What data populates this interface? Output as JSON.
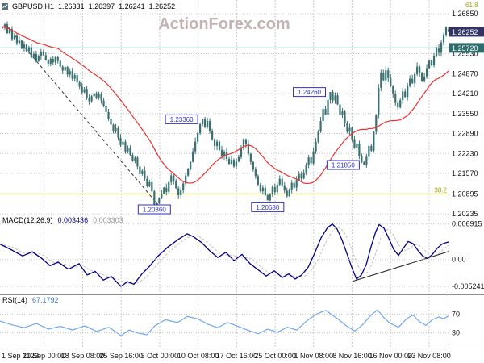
{
  "header": {
    "symbol_period": "GBPUSD,H1",
    "open": "1.26331",
    "high": "1.26397",
    "low": "1.26241",
    "close": "1.26252"
  },
  "watermark": "ActionForex.com",
  "colors": {
    "candle": "#3a7070",
    "ma": "#f03030",
    "grid": "#cccccc",
    "annotation": "#3030c0",
    "fib": "#a6a600",
    "level": "#2e6b6b",
    "tag_current_bg": "#343464",
    "tag_level_bg": "#2e6b6b",
    "macd_main": "#000080",
    "macd_signal": "#c0c0c0",
    "rsi": "#6fa8f0",
    "trendline": "#333333",
    "panel_border": "#909090"
  },
  "chart_data": {
    "type": "candlestick",
    "title": "GBPUSD H1",
    "ylim": [
      1.202,
      1.269
    ],
    "x_axis_labels": [
      "1 Sep 2023",
      "11 Sep 00:00",
      "18 Sep 08:00",
      "25 Sep 16:00",
      "3 Oct 00:00",
      "10 Oct 08:00",
      "17 Oct 16:00",
      "25 Oct 00:00",
      "1 Nov 08:00",
      "8 Nov 16:00",
      "16 Nov 00:00",
      "23 Nov 08:00"
    ],
    "price_axis_labels": [
      "1.26850",
      "1.25530",
      "1.24870",
      "1.24210",
      "1.23550",
      "1.22890",
      "1.22230",
      "1.21570",
      "1.20895",
      "1.20235"
    ],
    "price_tags": {
      "current": {
        "text": "1.26252",
        "price": 1.26252
      },
      "level": {
        "text": "1.25720",
        "price": 1.2572
      }
    },
    "closes": [
      1.2638,
      1.265,
      1.2621,
      1.2634,
      1.2601,
      1.2612,
      1.2588,
      1.2596,
      1.257,
      1.2583,
      1.2561,
      1.2574,
      1.254,
      1.2552,
      1.2528,
      1.2545,
      1.256,
      1.2548,
      1.2533,
      1.252,
      1.2536,
      1.2524,
      1.2541,
      1.2529,
      1.251,
      1.2497,
      1.2509,
      1.2484,
      1.2495,
      1.247,
      1.2482,
      1.2458,
      1.2444,
      1.2425,
      1.2436,
      1.2408,
      1.2396,
      1.2412,
      1.2422,
      1.2407,
      1.2419,
      1.2398,
      1.238,
      1.236,
      1.2338,
      1.2318,
      1.2296,
      1.2307,
      1.2275,
      1.2251,
      1.2262,
      1.223,
      1.2241,
      1.2218,
      1.2199,
      1.2209,
      1.218,
      1.2155,
      1.2166,
      1.2139,
      1.2117,
      1.2128,
      1.2098,
      1.204,
      1.2058,
      1.2075,
      1.209,
      1.211,
      1.2096,
      1.2128,
      1.215,
      1.2131,
      1.2108,
      1.2085,
      1.2101,
      1.2124,
      1.215,
      1.2172,
      1.2195,
      1.223,
      1.2262,
      1.229,
      1.232,
      1.2336,
      1.231,
      1.233,
      1.2298,
      1.227,
      1.2248,
      1.2262,
      1.2235,
      1.2214,
      1.2228,
      1.2205,
      1.2189,
      1.2202,
      1.218,
      1.2196,
      1.2211,
      1.224,
      1.227,
      1.2255,
      1.2222,
      1.2195,
      1.217,
      1.2148,
      1.212,
      1.2098,
      1.211,
      1.2085,
      1.2068,
      1.209,
      1.2112,
      1.2095,
      1.212,
      1.2139,
      1.2118,
      1.21,
      1.2082,
      1.2104,
      1.2126,
      1.211,
      1.2135,
      1.2155,
      1.214,
      1.216,
      1.2185,
      1.221,
      1.219,
      1.223,
      1.2262,
      1.2295,
      1.233,
      1.237,
      1.2352,
      1.24,
      1.2426,
      1.2398,
      1.2415,
      1.2385,
      1.235,
      1.2362,
      1.2325,
      1.2295,
      1.2308,
      1.227,
      1.224,
      1.2255,
      1.2215,
      1.2195,
      1.2185,
      1.2212,
      1.2248,
      1.2232,
      1.2295,
      1.235,
      1.244,
      1.249,
      1.2465,
      1.2498,
      1.2472,
      1.2445,
      1.242,
      1.239,
      1.2375,
      1.24,
      1.2428,
      1.241,
      1.2445,
      1.247,
      1.2455,
      1.2485,
      1.251,
      1.2488,
      1.2462,
      1.2478,
      1.2505,
      1.253,
      1.2515,
      1.2545,
      1.257,
      1.2556,
      1.259,
      1.2615,
      1.264,
      1.26252
    ],
    "ma_period": 24,
    "annotations": [
      {
        "text": "1.20360",
        "index": 63,
        "price": 1.2036,
        "anchor": "below"
      },
      {
        "text": "1.23360",
        "index": 83,
        "price": 1.2336,
        "anchor": "left"
      },
      {
        "text": "1.20680",
        "index": 110,
        "price": 1.2068,
        "anchor": "below"
      },
      {
        "text": "1.24260",
        "index": 136,
        "price": 1.2426,
        "anchor": "left"
      },
      {
        "text": "1.21850",
        "index": 150,
        "price": 1.2185,
        "anchor": "left"
      }
    ],
    "trendline": {
      "from": {
        "index": 2,
        "price": 1.2642
      },
      "to": {
        "index": 66,
        "price": 1.204
      }
    },
    "horizontal_level": 1.2572,
    "fibonacci": [
      {
        "label": "61.8",
        "price": 1.272
      },
      {
        "label": "38.2",
        "price": 1.20895
      }
    ],
    "macd": {
      "label": "MACD(12,26,9)",
      "value_main": "0.003436",
      "value_signal": "0.003303",
      "axis_labels": [
        "0.006915",
        "0.00",
        "-0.005241"
      ],
      "axis_values": [
        0.006915,
        0,
        -0.005241
      ],
      "keypoints": [
        [
          0,
          0.003
        ],
        [
          14,
          0.0019
        ],
        [
          28,
          0.0007
        ],
        [
          40,
          0.0015
        ],
        [
          52,
          0.0002
        ],
        [
          62,
          -0.0012
        ],
        [
          72,
          -0.0005
        ],
        [
          85,
          -0.0019
        ],
        [
          98,
          -0.0008
        ],
        [
          108,
          -0.003
        ],
        [
          118,
          -0.0023
        ],
        [
          128,
          -0.004
        ],
        [
          138,
          -0.0033
        ],
        [
          150,
          -0.00524
        ],
        [
          158,
          -0.0043
        ],
        [
          166,
          -0.0048
        ],
        [
          176,
          -0.0028
        ],
        [
          186,
          -0.0012
        ],
        [
          196,
          0.0007
        ],
        [
          208,
          0.0024
        ],
        [
          220,
          0.0038
        ],
        [
          232,
          0.005
        ],
        [
          240,
          0.0044
        ],
        [
          250,
          0.0033
        ],
        [
          260,
          0.0017
        ],
        [
          270,
          0.0004
        ],
        [
          280,
          0.0014
        ],
        [
          290,
          -0.0002
        ],
        [
          300,
          0.001
        ],
        [
          310,
          -0.0008
        ],
        [
          320,
          -0.002
        ],
        [
          330,
          -0.0032
        ],
        [
          340,
          -0.0022
        ],
        [
          350,
          -0.0035
        ],
        [
          358,
          -0.0028
        ],
        [
          366,
          -0.0038
        ],
        [
          374,
          -0.003
        ],
        [
          382,
          -0.0015
        ],
        [
          390,
          0.0012
        ],
        [
          398,
          0.0042
        ],
        [
          406,
          0.0062
        ],
        [
          412,
          0.00691
        ],
        [
          418,
          0.0059
        ],
        [
          424,
          0.0038
        ],
        [
          430,
          0.0012
        ],
        [
          436,
          -0.0015
        ],
        [
          442,
          -0.0038
        ],
        [
          448,
          -0.003
        ],
        [
          454,
          -0.001
        ],
        [
          460,
          0.0025
        ],
        [
          466,
          0.0055
        ],
        [
          470,
          0.0068
        ],
        [
          476,
          0.0061
        ],
        [
          482,
          0.0041
        ],
        [
          488,
          0.002
        ],
        [
          494,
          0.0008
        ],
        [
          500,
          0.0022
        ],
        [
          506,
          0.0035
        ],
        [
          512,
          0.0031
        ],
        [
          518,
          0.0018
        ],
        [
          524,
          0.0007
        ],
        [
          530,
          0.0002
        ],
        [
          536,
          0.001
        ],
        [
          542,
          0.0022
        ],
        [
          548,
          0.003
        ],
        [
          553,
          0.0033
        ],
        [
          557,
          0.003436
        ]
      ],
      "trendline": {
        "from": {
          "x": 438,
          "v": -0.0042
        },
        "to": {
          "x": 561,
          "v": 0.0018
        }
      }
    },
    "rsi": {
      "label": "RSI(14)",
      "value": "67.1792",
      "levels": [
        70,
        30
      ],
      "axis_labels": [
        "70",
        "30"
      ],
      "keypoints": [
        [
          0,
          55
        ],
        [
          15,
          47
        ],
        [
          30,
          41
        ],
        [
          45,
          50
        ],
        [
          60,
          38
        ],
        [
          75,
          44
        ],
        [
          90,
          36
        ],
        [
          105,
          45
        ],
        [
          120,
          33
        ],
        [
          135,
          42
        ],
        [
          150,
          24
        ],
        [
          160,
          36
        ],
        [
          170,
          30
        ],
        [
          182,
          26
        ],
        [
          192,
          45
        ],
        [
          205,
          58
        ],
        [
          220,
          52
        ],
        [
          232,
          65
        ],
        [
          245,
          60
        ],
        [
          258,
          48
        ],
        [
          270,
          41
        ],
        [
          282,
          52
        ],
        [
          295,
          44
        ],
        [
          308,
          35
        ],
        [
          320,
          28
        ],
        [
          332,
          38
        ],
        [
          344,
          31
        ],
        [
          356,
          42
        ],
        [
          368,
          36
        ],
        [
          380,
          55
        ],
        [
          392,
          70
        ],
        [
          404,
          78
        ],
        [
          412,
          68
        ],
        [
          420,
          58
        ],
        [
          430,
          44
        ],
        [
          440,
          34
        ],
        [
          450,
          48
        ],
        [
          460,
          68
        ],
        [
          468,
          79
        ],
        [
          476,
          62
        ],
        [
          484,
          50
        ],
        [
          494,
          42
        ],
        [
          504,
          60
        ],
        [
          512,
          68
        ],
        [
          520,
          54
        ],
        [
          528,
          46
        ],
        [
          536,
          58
        ],
        [
          544,
          64
        ],
        [
          550,
          60
        ],
        [
          557,
          67.18
        ]
      ]
    }
  }
}
